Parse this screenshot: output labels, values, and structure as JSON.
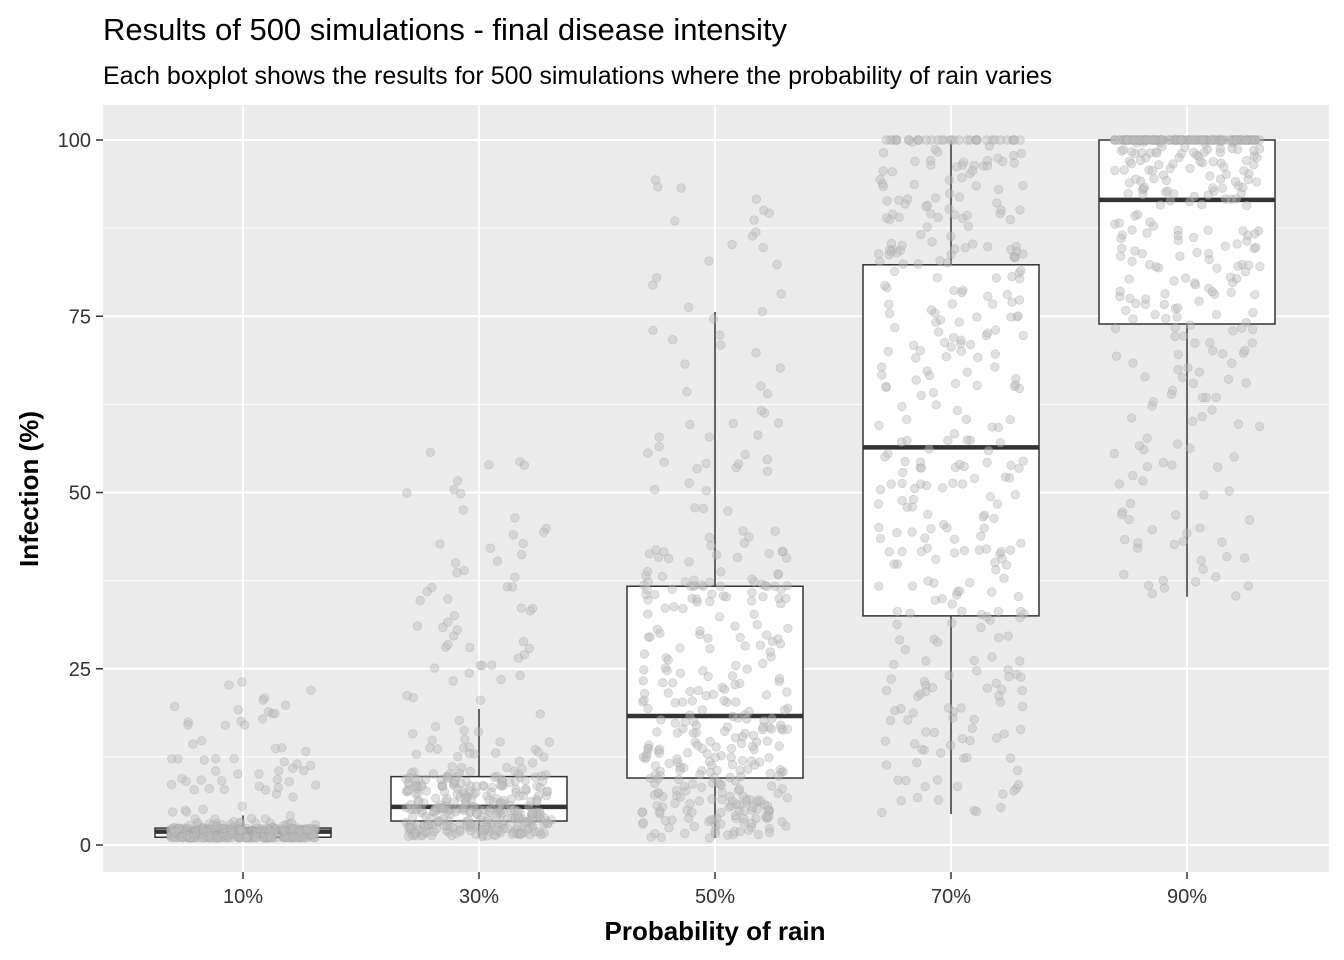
{
  "chart_data": {
    "type": "boxplot",
    "title": "Results of 500 simulations -  final disease intensity",
    "subtitle": "Each boxplot shows the results for 500 simulations where the probability of rain varies",
    "xlabel": "Probability of rain",
    "ylabel": "Infection (%)",
    "categories": [
      "10%",
      "30%",
      "50%",
      "70%",
      "90%"
    ],
    "yticks": [
      "0",
      "25",
      "50",
      "75",
      "100"
    ],
    "ylim": [
      -4,
      104
    ],
    "grid": true,
    "legend": "none",
    "point_color": "#bdbdbd",
    "box_fill": "#ffffff",
    "panel_background": "#ebebeb",
    "n_per_group": 500,
    "boxes": [
      {
        "category": "10%",
        "lower_whisker": 1.0,
        "q1": 1.1,
        "median": 1.9,
        "q3": 2.4,
        "upper_whisker": 4.2
      },
      {
        "category": "30%",
        "lower_whisker": 1.2,
        "q1": 3.4,
        "median": 5.4,
        "q3": 9.7,
        "upper_whisker": 19.3
      },
      {
        "category": "50%",
        "lower_whisker": 1.0,
        "q1": 9.5,
        "median": 18.3,
        "q3": 36.7,
        "upper_whisker": 75.6
      },
      {
        "category": "70%",
        "lower_whisker": 4.4,
        "q1": 32.5,
        "median": 56.4,
        "q3": 82.3,
        "upper_whisker": 100.0
      },
      {
        "category": "90%",
        "lower_whisker": 35.2,
        "q1": 73.9,
        "median": 91.5,
        "q3": 100.0,
        "upper_whisker": 100.0
      }
    ]
  }
}
